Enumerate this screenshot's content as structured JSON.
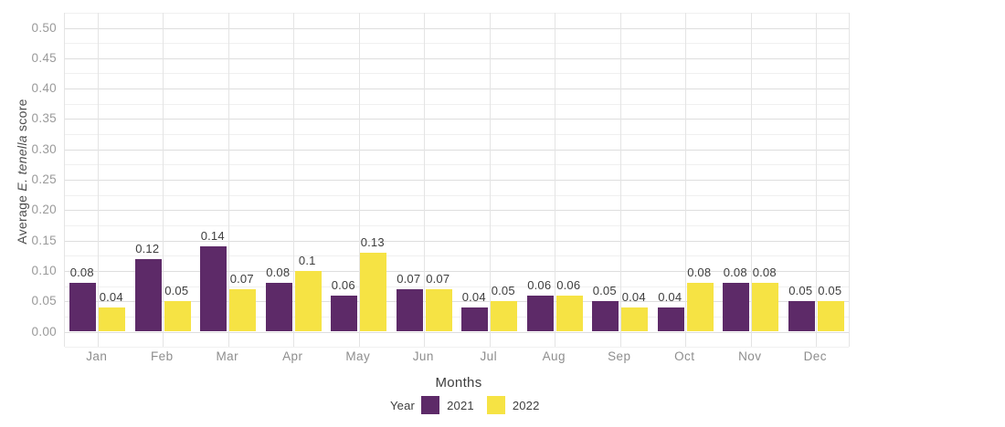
{
  "labels": {
    "y_title_prefix": "Average ",
    "y_title_italic": "E. tenella",
    "y_title_suffix": " score"
  },
  "chart_data": {
    "type": "bar",
    "title": "",
    "categories": [
      "Jan",
      "Feb",
      "Mar",
      "Apr",
      "May",
      "Jun",
      "Jul",
      "Aug",
      "Sep",
      "Oct",
      "Nov",
      "Dec"
    ],
    "series": [
      {
        "name": "2021",
        "color": "#5d2a68",
        "values": [
          0.08,
          0.12,
          0.14,
          0.08,
          0.06,
          0.07,
          0.04,
          0.06,
          0.05,
          0.04,
          0.08,
          0.05
        ]
      },
      {
        "name": "2022",
        "color": "#f6e344",
        "values": [
          0.04,
          0.05,
          0.07,
          0.1,
          0.13,
          0.07,
          0.05,
          0.06,
          0.04,
          0.08,
          0.08,
          0.05
        ]
      }
    ],
    "xlabel": "Months",
    "ylabel": "Average E. tenella score",
    "legend_title": "Year",
    "legend_position": "bottom",
    "ylim": [
      0,
      0.5
    ],
    "y_major_tick": 0.05,
    "y_minor_tick": 0.025,
    "y_tick_labels": [
      "0.00",
      "0.05",
      "0.10",
      "0.15",
      "0.20",
      "0.25",
      "0.30",
      "0.35",
      "0.40",
      "0.45",
      "0.50"
    ],
    "grid": true,
    "bar_value_labels": true,
    "colors": {
      "value_label": "#3d3d3d",
      "axis_tick_label": "#9a9a9a",
      "month_label": "#8e8e8e",
      "grid_major": "#dedede",
      "grid_minor": "#f0f0f0",
      "background": "#ffffff"
    }
  }
}
